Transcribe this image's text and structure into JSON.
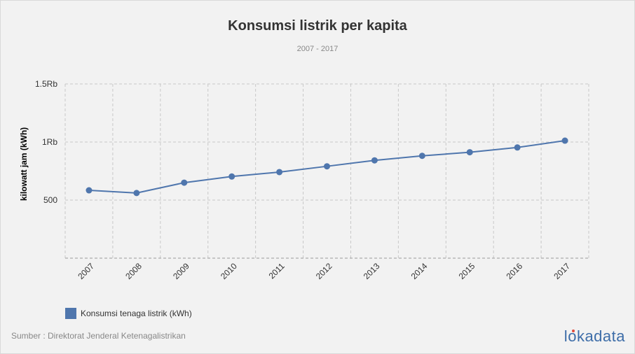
{
  "chart_data": {
    "type": "line",
    "title": "Konsumsi listrik per kapita",
    "subtitle": "2007 - 2017",
    "ylabel": "kilowatt jam (kWh)",
    "xlabel": "",
    "ylim": [
      0,
      1500
    ],
    "yticks": [
      500,
      1000,
      1500
    ],
    "ytick_labels": [
      "500",
      "1Rb",
      "1.5Rb"
    ],
    "categories": [
      "2007",
      "2008",
      "2009",
      "2010",
      "2011",
      "2012",
      "2013",
      "2014",
      "2015",
      "2016",
      "2017"
    ],
    "series": [
      {
        "name": "Konsumsi tenaga listrik (kWh)",
        "color": "#4f76ad",
        "values": [
          584,
          561,
          650,
          703,
          741,
          791,
          842,
          881,
          912,
          953,
          1012
        ]
      }
    ],
    "grid": true,
    "legend_position": "bottom-left"
  },
  "footer": {
    "source": "Sumber : Direktorat Jenderal Ketenagalistrikan",
    "logo": "lokadata"
  }
}
